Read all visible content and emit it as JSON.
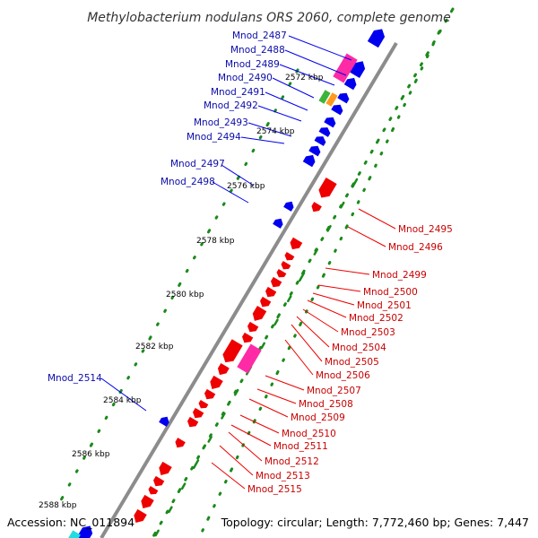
{
  "title": "Methylobacterium nodulans ORS 2060, complete genome",
  "accession": "Accession: NC_011894",
  "topology": "Topology: circular; Length: 7,772,460 bp; Genes: 7,447",
  "colors": {
    "forward_gene": "#0000ee",
    "reverse_gene": "#ee0000",
    "blue_label": "#0b0ba8",
    "red_label": "#c80000",
    "pink_feature": "#ff2aa5",
    "green_feature": "#3cb43c",
    "orange_feature": "#ff9a1e",
    "cyan_feature": "#22dddd",
    "gc_dots": "#1a8a1a",
    "backbone": "#8c8c8c"
  },
  "ticks": [
    "2572 kbp",
    "2574 kbp",
    "2576 kbp",
    "2578 kbp",
    "2580 kbp",
    "2582 kbp",
    "2584 kbp",
    "2586 kbp",
    "2588 kbp"
  ],
  "forward_labels": [
    "Mnod_2487",
    "Mnod_2488",
    "Mnod_2489",
    "Mnod_2490",
    "Mnod_2491",
    "Mnod_2492",
    "Mnod_2493",
    "Mnod_2494",
    "Mnod_2497",
    "Mnod_2498",
    "Mnod_2514"
  ],
  "reverse_labels": [
    "Mnod_2495",
    "Mnod_2496",
    "Mnod_2499",
    "Mnod_2500",
    "Mnod_2501",
    "Mnod_2502",
    "Mnod_2503",
    "Mnod_2504",
    "Mnod_2505",
    "Mnod_2506",
    "Mnod_2507",
    "Mnod_2508",
    "Mnod_2509",
    "Mnod_2510",
    "Mnod_2511",
    "Mnod_2512",
    "Mnod_2513",
    "Mnod_2515"
  ]
}
